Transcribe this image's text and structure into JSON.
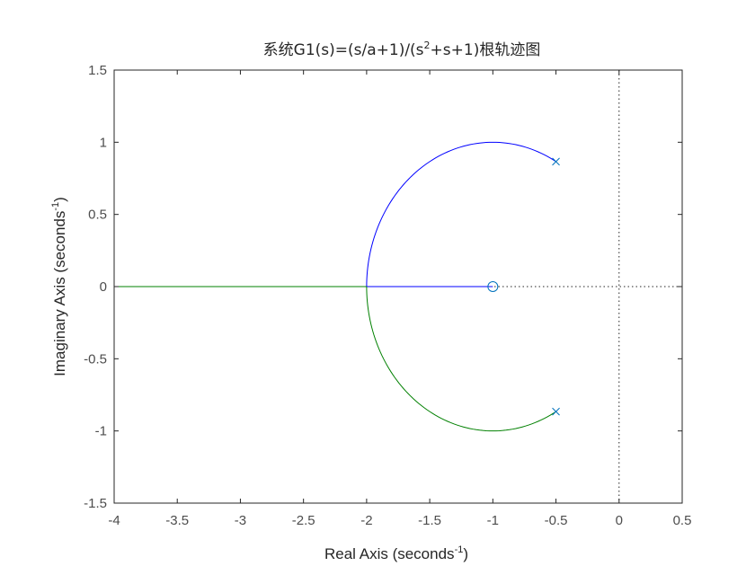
{
  "chart_data": {
    "type": "line",
    "title": {
      "main": "系统G1(s)=(s/a+1)/(s",
      "sup": "2",
      "rest": "+s+1)根轨迹图"
    },
    "xlabel": {
      "main": "Real Axis (seconds",
      "sup": "-1",
      "close": ")"
    },
    "ylabel": {
      "main": "Imaginary Axis (seconds",
      "sup": "-1",
      "close": ")"
    },
    "xlim": [
      -4,
      0.5
    ],
    "ylim": [
      -1.5,
      1.5
    ],
    "xticks": [
      "-4",
      "-3.5",
      "-3",
      "-2.5",
      "-2",
      "-1.5",
      "-1",
      "-0.5",
      "0",
      "0.5"
    ],
    "yticks": [
      "-1.5",
      "-1",
      "-0.5",
      "0",
      "0.5",
      "1",
      "1.5"
    ],
    "grid": false,
    "colors": {
      "blue": "#0000ff",
      "green": "#008000",
      "marker": "#0072bd",
      "axis": "#262626",
      "tick": "#4d4d4d"
    },
    "series": [
      {
        "color": "blue",
        "segments": [
          {
            "kind": "arc",
            "center": [
              -1,
              0
            ],
            "radius": 1,
            "from_deg": 60,
            "to_deg": 180
          },
          {
            "kind": "line",
            "points": [
              [
                -2,
                0
              ],
              [
                -1,
                0
              ]
            ]
          }
        ]
      },
      {
        "color": "green",
        "segments": [
          {
            "kind": "arc",
            "center": [
              -1,
              0
            ],
            "radius": 1,
            "from_deg": -60,
            "to_deg": -180
          },
          {
            "kind": "line",
            "points": [
              [
                -2,
                0
              ],
              [
                -4,
                0
              ]
            ]
          }
        ]
      }
    ],
    "poles": [
      [
        -0.5,
        0.866
      ],
      [
        -0.5,
        -0.866
      ]
    ],
    "zeros": [
      [
        -1,
        0
      ]
    ],
    "reference_lines": [
      {
        "orientation": "vertical",
        "value": 0
      },
      {
        "orientation": "horizontal",
        "value": 0
      }
    ]
  }
}
